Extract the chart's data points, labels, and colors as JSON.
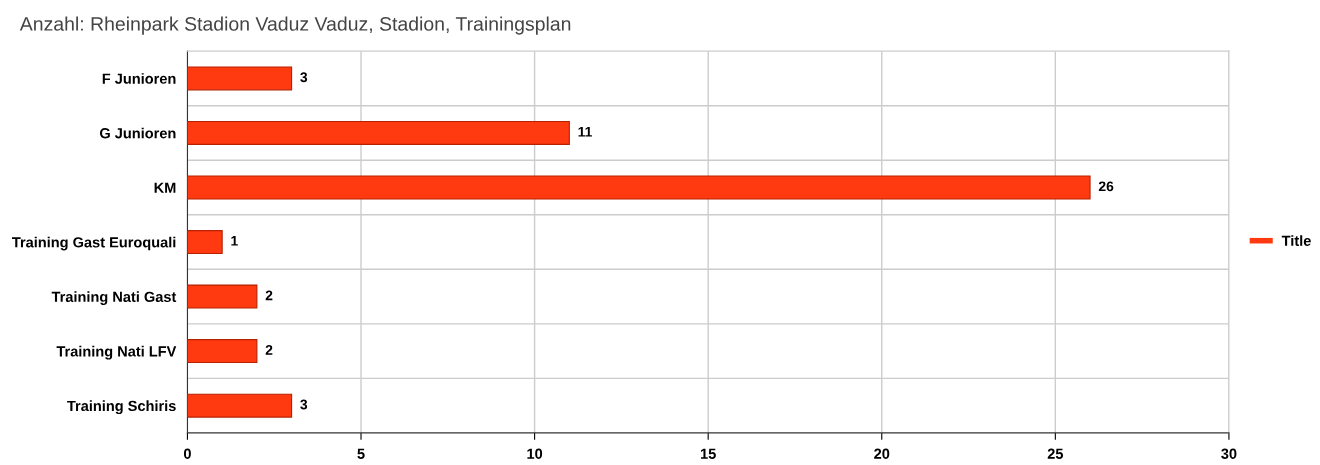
{
  "chart_data": {
    "type": "bar",
    "orientation": "horizontal",
    "title": "Anzahl: Rheinpark Stadion Vaduz Vaduz, Stadion, Trainingsplan",
    "categories": [
      "F Junioren",
      "G Junioren",
      "KM",
      "Training Gast Euroquali",
      "Training Nati Gast",
      "Training Nati LFV",
      "Training Schiris"
    ],
    "series": [
      {
        "name": "Title",
        "color": "#ff3a10",
        "values": [
          3,
          11,
          26,
          1,
          2,
          2,
          3
        ]
      }
    ],
    "xlim": [
      0,
      30
    ],
    "xticks": [
      0,
      5,
      10,
      15,
      20,
      25,
      30
    ],
    "grid": true,
    "legend": "right",
    "data_labels": true
  }
}
